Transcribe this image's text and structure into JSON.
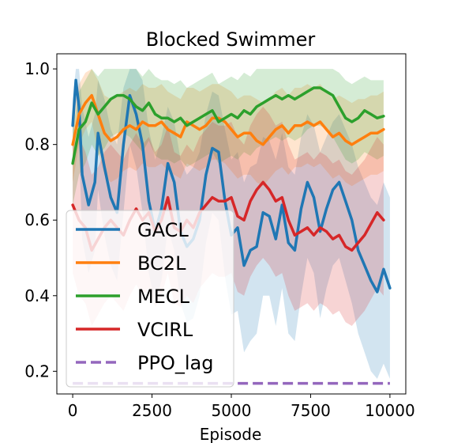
{
  "chart_data": {
    "type": "line",
    "title": "Blocked Swimmer",
    "xlabel": "Episode",
    "ylabel": "",
    "xlim": [
      -500,
      10500
    ],
    "ylim": [
      0.14,
      1.04
    ],
    "xticks": [
      0,
      2500,
      5000,
      7500,
      10000
    ],
    "xtick_labels": [
      "0",
      "2500",
      "5000",
      "7500",
      "10000"
    ],
    "yticks": [
      0.2,
      0.4,
      0.6,
      0.8,
      1.0
    ],
    "ytick_labels": [
      "0.2",
      "0.4",
      "0.6",
      "0.8",
      "1.0"
    ],
    "grid": false,
    "legend_position": "lower-left",
    "series": [
      {
        "name": "GACL",
        "color": "#1f77b4",
        "dash": false,
        "x": [
          0,
          100,
          200,
          300,
          500,
          700,
          800,
          1000,
          1200,
          1400,
          1600,
          1800,
          2000,
          2200,
          2400,
          2600,
          2800,
          3000,
          3200,
          3400,
          3600,
          3800,
          4000,
          4200,
          4400,
          4600,
          4800,
          5000,
          5200,
          5400,
          5600,
          5800,
          6000,
          6200,
          6400,
          6600,
          6800,
          7000,
          7200,
          7400,
          7600,
          7800,
          8000,
          8200,
          8400,
          8600,
          8800,
          9000,
          9200,
          9400,
          9600,
          9800,
          10000
        ],
        "values": [
          0.85,
          0.97,
          0.9,
          0.72,
          0.64,
          0.7,
          0.83,
          0.74,
          0.66,
          0.62,
          0.8,
          0.93,
          0.88,
          0.8,
          0.65,
          0.57,
          0.63,
          0.75,
          0.7,
          0.57,
          0.53,
          0.55,
          0.6,
          0.72,
          0.79,
          0.78,
          0.65,
          0.56,
          0.58,
          0.48,
          0.52,
          0.53,
          0.62,
          0.61,
          0.55,
          0.64,
          0.54,
          0.52,
          0.63,
          0.7,
          0.66,
          0.57,
          0.63,
          0.68,
          0.7,
          0.65,
          0.6,
          0.52,
          0.48,
          0.44,
          0.41,
          0.47,
          0.42
        ],
        "band_upper": [
          0.92,
          1.0,
          1.0,
          0.9,
          0.82,
          0.88,
          0.97,
          0.92,
          0.84,
          0.8,
          0.95,
          1.0,
          1.0,
          0.97,
          0.84,
          0.76,
          0.82,
          0.9,
          0.86,
          0.76,
          0.72,
          0.74,
          0.78,
          0.88,
          0.94,
          0.93,
          0.84,
          0.76,
          0.78,
          0.7,
          0.74,
          0.75,
          0.82,
          0.81,
          0.76,
          0.83,
          0.74,
          0.72,
          0.82,
          0.88,
          0.85,
          0.78,
          0.82,
          0.86,
          0.88,
          0.84,
          0.8,
          0.74,
          0.7,
          0.66,
          0.64,
          0.7,
          0.66
        ],
        "band_lower": [
          0.78,
          0.92,
          0.8,
          0.55,
          0.46,
          0.52,
          0.68,
          0.56,
          0.48,
          0.44,
          0.62,
          0.8,
          0.74,
          0.62,
          0.46,
          0.38,
          0.44,
          0.58,
          0.52,
          0.38,
          0.33,
          0.34,
          0.4,
          0.54,
          0.62,
          0.6,
          0.45,
          0.35,
          0.36,
          0.25,
          0.28,
          0.3,
          0.4,
          0.4,
          0.32,
          0.42,
          0.3,
          0.28,
          0.4,
          0.5,
          0.46,
          0.34,
          0.42,
          0.48,
          0.5,
          0.44,
          0.38,
          0.3,
          0.25,
          0.2,
          0.18,
          0.22,
          0.18
        ]
      },
      {
        "name": "BC2L",
        "color": "#ff7f0e",
        "dash": false,
        "x": [
          0,
          200,
          400,
          600,
          800,
          1000,
          1200,
          1400,
          1600,
          1800,
          2000,
          2200,
          2400,
          2600,
          2800,
          3000,
          3200,
          3400,
          3600,
          3800,
          4000,
          4200,
          4400,
          4600,
          4800,
          5000,
          5200,
          5400,
          5600,
          5800,
          6000,
          6200,
          6400,
          6600,
          6800,
          7000,
          7200,
          7400,
          7600,
          7800,
          8000,
          8200,
          8400,
          8600,
          8800,
          9000,
          9200,
          9400,
          9600,
          9800
        ],
        "values": [
          0.8,
          0.88,
          0.91,
          0.93,
          0.88,
          0.83,
          0.81,
          0.82,
          0.84,
          0.85,
          0.84,
          0.86,
          0.85,
          0.85,
          0.86,
          0.84,
          0.83,
          0.82,
          0.86,
          0.85,
          0.84,
          0.85,
          0.87,
          0.87,
          0.86,
          0.84,
          0.82,
          0.83,
          0.83,
          0.81,
          0.8,
          0.82,
          0.84,
          0.85,
          0.83,
          0.85,
          0.85,
          0.86,
          0.85,
          0.86,
          0.84,
          0.82,
          0.83,
          0.81,
          0.8,
          0.81,
          0.82,
          0.83,
          0.83,
          0.84
        ],
        "band_upper": [
          0.88,
          0.96,
          0.99,
          1.0,
          0.97,
          0.93,
          0.92,
          0.93,
          0.94,
          0.95,
          0.94,
          0.96,
          0.95,
          0.95,
          0.96,
          0.94,
          0.93,
          0.92,
          0.95,
          0.95,
          0.94,
          0.95,
          0.96,
          0.96,
          0.95,
          0.94,
          0.92,
          0.93,
          0.93,
          0.92,
          0.91,
          0.92,
          0.94,
          0.95,
          0.93,
          0.95,
          0.95,
          0.96,
          0.95,
          0.96,
          0.94,
          0.92,
          0.93,
          0.92,
          0.91,
          0.92,
          0.92,
          0.93,
          0.93,
          0.94
        ],
        "band_lower": [
          0.7,
          0.8,
          0.84,
          0.86,
          0.78,
          0.72,
          0.7,
          0.71,
          0.73,
          0.74,
          0.73,
          0.75,
          0.74,
          0.74,
          0.75,
          0.73,
          0.72,
          0.71,
          0.75,
          0.74,
          0.73,
          0.74,
          0.76,
          0.76,
          0.75,
          0.73,
          0.71,
          0.72,
          0.72,
          0.7,
          0.69,
          0.71,
          0.73,
          0.74,
          0.72,
          0.74,
          0.74,
          0.75,
          0.74,
          0.75,
          0.73,
          0.71,
          0.72,
          0.7,
          0.69,
          0.7,
          0.71,
          0.72,
          0.72,
          0.73
        ]
      },
      {
        "name": "MECL",
        "color": "#2ca02c",
        "dash": false,
        "x": [
          0,
          200,
          400,
          600,
          800,
          1000,
          1200,
          1400,
          1600,
          1800,
          2000,
          2200,
          2400,
          2600,
          2800,
          3000,
          3200,
          3400,
          3600,
          3800,
          4000,
          4200,
          4400,
          4600,
          4800,
          5000,
          5200,
          5400,
          5600,
          5800,
          6000,
          6200,
          6400,
          6600,
          6800,
          7000,
          7200,
          7400,
          7600,
          7800,
          8000,
          8200,
          8400,
          8600,
          8800,
          9000,
          9200,
          9400,
          9600,
          9800
        ],
        "values": [
          0.75,
          0.84,
          0.86,
          0.91,
          0.88,
          0.9,
          0.92,
          0.93,
          0.93,
          0.92,
          0.9,
          0.89,
          0.91,
          0.88,
          0.87,
          0.87,
          0.86,
          0.87,
          0.85,
          0.86,
          0.87,
          0.88,
          0.89,
          0.86,
          0.87,
          0.88,
          0.87,
          0.89,
          0.88,
          0.9,
          0.91,
          0.92,
          0.93,
          0.92,
          0.93,
          0.92,
          0.93,
          0.94,
          0.95,
          0.95,
          0.94,
          0.93,
          0.9,
          0.87,
          0.86,
          0.87,
          0.89,
          0.88,
          0.87,
          0.875
        ],
        "band_upper": [
          0.84,
          0.94,
          0.97,
          1.0,
          0.98,
          1.0,
          1.0,
          1.0,
          1.0,
          1.0,
          1.0,
          0.98,
          1.0,
          0.98,
          0.97,
          0.97,
          0.96,
          0.97,
          0.95,
          0.96,
          0.97,
          0.98,
          0.99,
          0.96,
          0.97,
          0.98,
          0.97,
          0.99,
          0.98,
          1.0,
          1.0,
          1.0,
          1.0,
          1.0,
          1.0,
          1.0,
          1.0,
          1.0,
          1.0,
          1.0,
          1.0,
          1.0,
          0.99,
          0.97,
          0.96,
          0.97,
          0.98,
          0.97,
          0.97,
          0.97
        ],
        "band_lower": [
          0.64,
          0.72,
          0.75,
          0.8,
          0.77,
          0.79,
          0.82,
          0.83,
          0.83,
          0.82,
          0.8,
          0.78,
          0.81,
          0.77,
          0.76,
          0.76,
          0.75,
          0.76,
          0.74,
          0.75,
          0.76,
          0.77,
          0.78,
          0.75,
          0.76,
          0.77,
          0.76,
          0.78,
          0.77,
          0.79,
          0.8,
          0.81,
          0.82,
          0.81,
          0.82,
          0.81,
          0.82,
          0.84,
          0.85,
          0.85,
          0.84,
          0.82,
          0.79,
          0.76,
          0.75,
          0.76,
          0.78,
          0.77,
          0.76,
          0.77
        ]
      },
      {
        "name": "VCIRL",
        "color": "#d62728",
        "dash": false,
        "x": [
          0,
          200,
          400,
          600,
          800,
          1000,
          1200,
          1400,
          1600,
          1800,
          2000,
          2200,
          2400,
          2600,
          2800,
          3000,
          3200,
          3400,
          3600,
          3800,
          4000,
          4200,
          4400,
          4600,
          4800,
          5000,
          5200,
          5400,
          5600,
          5800,
          6000,
          6200,
          6400,
          6600,
          6800,
          7000,
          7200,
          7400,
          7600,
          7800,
          8000,
          8200,
          8400,
          8600,
          8800,
          9000,
          9200,
          9400,
          9600,
          9800
        ],
        "values": [
          0.64,
          0.6,
          0.58,
          0.52,
          0.55,
          0.58,
          0.6,
          0.58,
          0.56,
          0.6,
          0.63,
          0.6,
          0.62,
          0.57,
          0.6,
          0.66,
          0.58,
          0.57,
          0.6,
          0.58,
          0.62,
          0.64,
          0.66,
          0.65,
          0.65,
          0.66,
          0.61,
          0.6,
          0.65,
          0.68,
          0.7,
          0.68,
          0.65,
          0.66,
          0.6,
          0.56,
          0.57,
          0.58,
          0.56,
          0.58,
          0.57,
          0.55,
          0.56,
          0.53,
          0.52,
          0.54,
          0.56,
          0.59,
          0.62,
          0.6
        ],
        "band_upper": [
          0.8,
          0.82,
          0.78,
          0.72,
          0.74,
          0.78,
          0.8,
          0.78,
          0.76,
          0.8,
          0.83,
          0.8,
          0.82,
          0.78,
          0.8,
          0.85,
          0.78,
          0.77,
          0.8,
          0.78,
          0.82,
          0.84,
          0.86,
          0.85,
          0.85,
          0.86,
          0.82,
          0.8,
          0.85,
          0.88,
          0.9,
          0.88,
          0.85,
          0.86,
          0.8,
          0.76,
          0.77,
          0.78,
          0.76,
          0.78,
          0.77,
          0.75,
          0.76,
          0.73,
          0.72,
          0.74,
          0.76,
          0.79,
          0.82,
          0.8
        ],
        "band_lower": [
          0.46,
          0.4,
          0.38,
          0.32,
          0.35,
          0.38,
          0.4,
          0.38,
          0.36,
          0.4,
          0.43,
          0.4,
          0.42,
          0.37,
          0.4,
          0.46,
          0.38,
          0.37,
          0.4,
          0.38,
          0.42,
          0.44,
          0.46,
          0.45,
          0.45,
          0.46,
          0.41,
          0.4,
          0.45,
          0.48,
          0.5,
          0.48,
          0.45,
          0.46,
          0.4,
          0.36,
          0.37,
          0.38,
          0.36,
          0.38,
          0.37,
          0.35,
          0.36,
          0.33,
          0.32,
          0.34,
          0.36,
          0.39,
          0.42,
          0.4
        ]
      },
      {
        "name": "PPO_lag",
        "color": "#9467bd",
        "dash": true,
        "x": [
          0,
          10000
        ],
        "values": [
          0.168,
          0.168
        ]
      }
    ]
  }
}
